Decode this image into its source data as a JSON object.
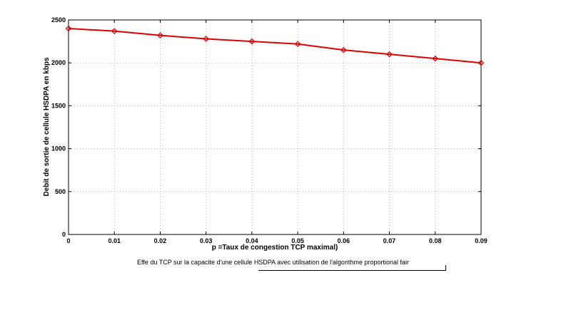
{
  "chart_data": {
    "type": "line",
    "x": [
      0,
      0.01,
      0.02,
      0.03,
      0.04,
      0.05,
      0.06,
      0.07,
      0.08,
      0.09
    ],
    "series": [
      {
        "values": [
          2400,
          2370,
          2320,
          2280,
          2250,
          2220,
          2150,
          2100,
          2050,
          2000
        ]
      }
    ],
    "xlabel": "p =Taux de  congestion TCP maximal)",
    "ylabel": "Debit de sortie de cellule HSDPA en kbps",
    "xlim": [
      0,
      0.09
    ],
    "ylim": [
      0,
      2500
    ],
    "xticks": [
      "0",
      "0.01",
      "0.02",
      "0.03",
      "0.04",
      "0.05",
      "0.06",
      "0.07",
      "0.08",
      "0.09"
    ],
    "yticks": [
      "0",
      "500",
      "1000",
      "1500",
      "2000",
      "2500"
    ],
    "grid": true,
    "line_color": "#e00000",
    "marker": "diamond"
  },
  "caption": "Effe du  TCP sur la capacite d'une cellule HSDPA  avec utilisation de l'algorithme proportional fair"
}
